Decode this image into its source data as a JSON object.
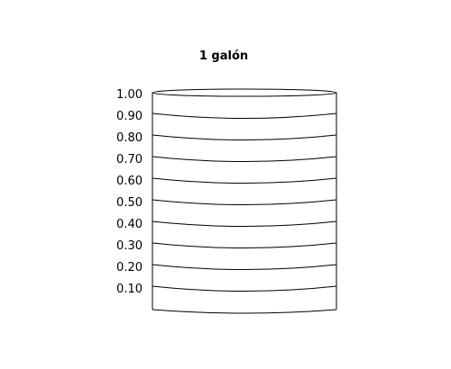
{
  "title": "1 galón",
  "scale_labels": [
    "1.00",
    "0.90",
    "0.80",
    "0.70",
    "0.60",
    "0.50",
    "0.40",
    "0.30",
    "0.20",
    "0.10"
  ],
  "colors": {
    "stroke": "#000000",
    "background": "#ffffff"
  }
}
